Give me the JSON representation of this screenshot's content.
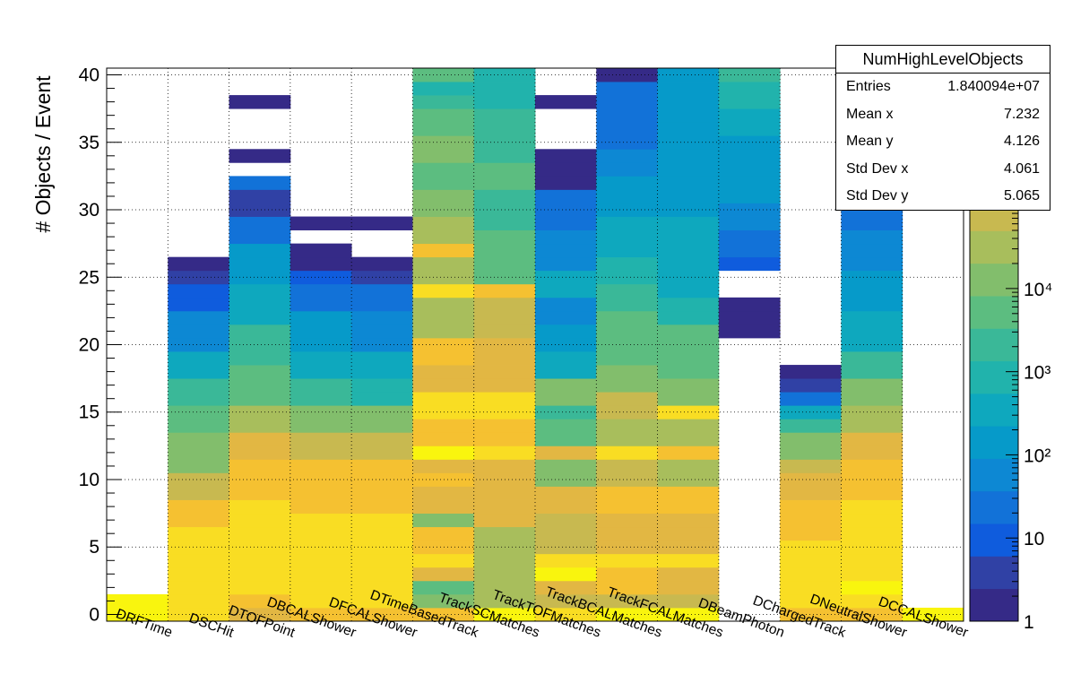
{
  "colors": {
    "palette": [
      "#352a87",
      "#3041a5",
      "#0f5cdd",
      "#1272d8",
      "#0d88d3",
      "#069ac9",
      "#0ea8be",
      "#21b3ac",
      "#3ab898",
      "#5cbd80",
      "#82be6c",
      "#a8be5c",
      "#c8b950",
      "#e2b743",
      "#f5c131",
      "#f9dd23",
      "#f9f50e"
    ]
  },
  "chart_data": {
    "type": "heatmap",
    "title": "",
    "xlabel": "",
    "ylabel": "# Objects / Event",
    "categories": [
      "DRFTime",
      "DSCHit",
      "DTOFPoint",
      "DBCALShower",
      "DFCALShower",
      "DTimeBasedTrack",
      "TrackSCMatches",
      "TrackTOFMatches",
      "TrackBCALMatches",
      "TrackFCALMatches",
      "DBeamPhoton",
      "DChargedTrack",
      "DNeutralShower",
      "DCCALShower"
    ],
    "ylim": [
      -0.5,
      40.5
    ],
    "yticks": [
      0,
      5,
      10,
      15,
      20,
      25,
      30,
      35,
      40
    ],
    "zscale": "log",
    "zticks": [
      {
        "value": 1,
        "label": "1"
      },
      {
        "value": 10,
        "label": "10"
      },
      {
        "value": 100,
        "label": "10²"
      },
      {
        "value": 1000,
        "label": "10³"
      },
      {
        "value": 10000,
        "label": "10⁴"
      }
    ],
    "z_colorbar_max_log10": 6.65,
    "grid": true,
    "legend": "none",
    "column_profiles_log10z": [
      [
        [
          0,
          0,
          6.6
        ],
        [
          1,
          1,
          7.0
        ]
      ],
      [
        [
          0,
          0,
          5.9
        ],
        [
          1,
          4,
          6.1
        ],
        [
          5,
          6,
          5.9
        ],
        [
          7,
          8,
          5.6
        ],
        [
          9,
          10,
          5.0
        ],
        [
          11,
          13,
          4.2
        ],
        [
          14,
          15,
          3.6
        ],
        [
          16,
          17,
          3.2
        ],
        [
          18,
          19,
          2.4
        ],
        [
          20,
          22,
          1.8
        ],
        [
          23,
          24,
          1.0
        ],
        [
          25,
          25,
          0.6
        ],
        [
          26,
          26,
          0.0
        ]
      ],
      [
        [
          0,
          0,
          5.2
        ],
        [
          1,
          1,
          5.6
        ],
        [
          2,
          2,
          5.9
        ],
        [
          3,
          8,
          6.1
        ],
        [
          9,
          11,
          5.7
        ],
        [
          12,
          13,
          5.2
        ],
        [
          14,
          15,
          4.5
        ],
        [
          16,
          18,
          3.8
        ],
        [
          19,
          21,
          3.3
        ],
        [
          22,
          24,
          2.6
        ],
        [
          25,
          27,
          2.0
        ],
        [
          28,
          29,
          1.5
        ],
        [
          30,
          31,
          0.6
        ],
        [
          32,
          32,
          1.2
        ],
        [
          34,
          34,
          0.0
        ],
        [
          38,
          38,
          0.0
        ]
      ],
      [
        [
          0,
          0,
          5.7
        ],
        [
          1,
          7,
          6.0
        ],
        [
          8,
          11,
          5.6
        ],
        [
          12,
          13,
          5.0
        ],
        [
          14,
          15,
          4.3
        ],
        [
          16,
          17,
          3.4
        ],
        [
          18,
          19,
          2.6
        ],
        [
          20,
          22,
          2.0
        ],
        [
          23,
          24,
          1.5
        ],
        [
          25,
          25,
          0.8
        ],
        [
          26,
          26,
          0.3
        ],
        [
          27,
          27,
          0.0
        ],
        [
          29,
          29,
          0.0
        ]
      ],
      [
        [
          0,
          0,
          5.7
        ],
        [
          1,
          3,
          6.2
        ],
        [
          4,
          7,
          6.0
        ],
        [
          8,
          11,
          5.6
        ],
        [
          12,
          13,
          4.8
        ],
        [
          14,
          15,
          4.0
        ],
        [
          16,
          17,
          3.1
        ],
        [
          18,
          19,
          2.5
        ],
        [
          20,
          22,
          1.9
        ],
        [
          23,
          24,
          1.2
        ],
        [
          25,
          25,
          0.4
        ],
        [
          26,
          26,
          0.0
        ],
        [
          29,
          29,
          0.0
        ]
      ],
      [
        [
          0,
          0,
          5.8
        ],
        [
          1,
          1,
          4.2
        ],
        [
          2,
          2,
          3.7
        ],
        [
          3,
          3,
          5.1
        ],
        [
          4,
          4,
          6.0
        ],
        [
          5,
          6,
          5.5
        ],
        [
          7,
          7,
          4.0
        ],
        [
          8,
          9,
          5.4
        ],
        [
          10,
          10,
          5.6
        ],
        [
          11,
          11,
          5.2
        ],
        [
          12,
          12,
          6.3
        ],
        [
          13,
          14,
          5.6
        ],
        [
          15,
          16,
          6.2
        ],
        [
          17,
          18,
          5.3
        ],
        [
          19,
          20,
          5.8
        ],
        [
          21,
          22,
          4.6
        ],
        [
          23,
          23,
          4.4
        ],
        [
          24,
          24,
          5.9
        ],
        [
          25,
          26,
          4.6
        ],
        [
          27,
          27,
          5.8
        ],
        [
          28,
          29,
          4.4
        ],
        [
          30,
          31,
          4.2
        ],
        [
          32,
          33,
          3.8
        ],
        [
          34,
          35,
          4.0
        ],
        [
          36,
          37,
          3.6
        ],
        [
          38,
          38,
          3.3
        ],
        [
          39,
          39,
          2.8
        ],
        [
          40,
          40,
          3.8
        ]
      ],
      [
        [
          0,
          0,
          6.3
        ],
        [
          1,
          6,
          4.5
        ],
        [
          7,
          8,
          5.4
        ],
        [
          9,
          11,
          5.4
        ],
        [
          12,
          12,
          6.0
        ],
        [
          13,
          14,
          5.8
        ],
        [
          15,
          16,
          6.0
        ],
        [
          17,
          18,
          5.2
        ],
        [
          19,
          20,
          5.4
        ],
        [
          21,
          23,
          4.7
        ],
        [
          24,
          24,
          5.5
        ],
        [
          25,
          28,
          3.8
        ],
        [
          29,
          31,
          3.4
        ],
        [
          32,
          33,
          3.6
        ],
        [
          34,
          35,
          3.2
        ],
        [
          36,
          37,
          3.3
        ],
        [
          38,
          39,
          2.9
        ],
        [
          40,
          40,
          2.8
        ]
      ],
      [
        [
          0,
          0,
          5.9
        ],
        [
          1,
          1,
          4.7
        ],
        [
          2,
          2,
          5.2
        ],
        [
          3,
          3,
          6.6
        ],
        [
          4,
          4,
          6.0
        ],
        [
          5,
          7,
          5.0
        ],
        [
          8,
          9,
          5.1
        ],
        [
          10,
          11,
          4.0
        ],
        [
          12,
          12,
          5.3
        ],
        [
          13,
          14,
          3.7
        ],
        [
          15,
          15,
          3.2
        ],
        [
          16,
          17,
          4.0
        ],
        [
          18,
          19,
          2.6
        ],
        [
          20,
          21,
          2.1
        ],
        [
          22,
          23,
          1.8
        ],
        [
          24,
          25,
          2.4
        ],
        [
          26,
          28,
          1.6
        ],
        [
          29,
          31,
          1.3
        ],
        [
          32,
          34,
          0.2
        ],
        [
          38,
          38,
          0.0
        ]
      ],
      [
        [
          0,
          0,
          6.3
        ],
        [
          1,
          1,
          4.8
        ],
        [
          2,
          3,
          5.5
        ],
        [
          4,
          4,
          5.9
        ],
        [
          5,
          7,
          5.1
        ],
        [
          8,
          9,
          5.6
        ],
        [
          10,
          11,
          4.7
        ],
        [
          12,
          12,
          5.9
        ],
        [
          13,
          14,
          4.4
        ],
        [
          15,
          16,
          4.8
        ],
        [
          17,
          18,
          4.0
        ],
        [
          19,
          20,
          3.8
        ],
        [
          21,
          22,
          3.7
        ],
        [
          23,
          24,
          3.5
        ],
        [
          25,
          26,
          2.8
        ],
        [
          27,
          29,
          2.4
        ],
        [
          30,
          32,
          2.2
        ],
        [
          33,
          34,
          1.8
        ],
        [
          35,
          37,
          1.4
        ],
        [
          38,
          39,
          1.2
        ],
        [
          40,
          40,
          0.2
        ]
      ],
      [
        [
          0,
          0,
          6.3
        ],
        [
          1,
          1,
          5.0
        ],
        [
          2,
          3,
          5.2
        ],
        [
          4,
          4,
          5.9
        ],
        [
          5,
          7,
          5.3
        ],
        [
          8,
          9,
          5.6
        ],
        [
          10,
          11,
          4.6
        ],
        [
          12,
          12,
          5.7
        ],
        [
          13,
          14,
          4.6
        ],
        [
          15,
          15,
          5.9
        ],
        [
          16,
          17,
          4.3
        ],
        [
          18,
          19,
          3.8
        ],
        [
          20,
          21,
          3.6
        ],
        [
          22,
          23,
          3.1
        ],
        [
          24,
          26,
          2.6
        ],
        [
          27,
          29,
          2.4
        ],
        [
          30,
          32,
          2.3
        ],
        [
          33,
          35,
          2.0
        ],
        [
          36,
          37,
          2.2
        ],
        [
          38,
          39,
          2.0
        ],
        [
          40,
          40,
          2.1
        ]
      ],
      [
        [
          21,
          23,
          0.0
        ],
        [
          26,
          26,
          0.9
        ],
        [
          27,
          28,
          1.5
        ],
        [
          29,
          30,
          1.8
        ],
        [
          31,
          33,
          2.0
        ],
        [
          34,
          35,
          2.2
        ],
        [
          36,
          37,
          2.5
        ],
        [
          38,
          39,
          2.9
        ],
        [
          40,
          40,
          3.5
        ]
      ],
      [
        [
          0,
          0,
          5.7
        ],
        [
          1,
          1,
          6.0
        ],
        [
          2,
          5,
          6.1
        ],
        [
          6,
          8,
          5.8
        ],
        [
          9,
          10,
          5.4
        ],
        [
          11,
          11,
          4.7
        ],
        [
          12,
          13,
          4.0
        ],
        [
          14,
          14,
          3.4
        ],
        [
          15,
          15,
          2.5
        ],
        [
          16,
          16,
          1.5
        ],
        [
          17,
          17,
          0.7
        ],
        [
          18,
          18,
          0.0
        ]
      ],
      [
        [
          0,
          0,
          5.6
        ],
        [
          1,
          1,
          6.1
        ],
        [
          2,
          2,
          6.3
        ],
        [
          3,
          8,
          6.1
        ],
        [
          9,
          11,
          5.7
        ],
        [
          12,
          13,
          5.2
        ],
        [
          14,
          15,
          4.6
        ],
        [
          16,
          17,
          4.0
        ],
        [
          18,
          19,
          3.3
        ],
        [
          20,
          22,
          2.7
        ],
        [
          23,
          25,
          2.1
        ],
        [
          26,
          28,
          1.7
        ],
        [
          29,
          31,
          1.3
        ]
      ],
      [
        [
          0,
          0,
          6.6
        ]
      ]
    ]
  },
  "stats_box": {
    "title": "NumHighLevelObjects",
    "rows": [
      {
        "label": "Entries",
        "value": "1.840094e+07"
      },
      {
        "label": "Mean x",
        "value": "7.232"
      },
      {
        "label": "Mean y",
        "value": "4.126"
      },
      {
        "label": "Std Dev x",
        "value": "4.061"
      },
      {
        "label": "Std Dev y",
        "value": "5.065"
      }
    ]
  }
}
